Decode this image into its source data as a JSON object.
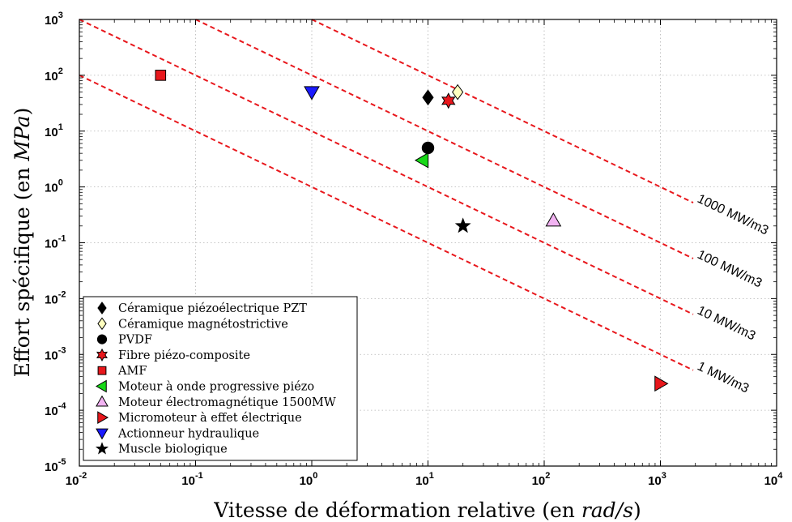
{
  "chart_data": {
    "type": "scatter",
    "xlabel": {
      "prefix": "Vitesse de déformation relative (en ",
      "unit": "rad/s",
      "suffix": ")"
    },
    "ylabel": {
      "prefix": "Effort spécifique (en ",
      "unit": "MPa",
      "suffix": ")"
    },
    "x_scale": "log",
    "y_scale": "log",
    "xlim": [
      0.01,
      10000
    ],
    "ylim": [
      1e-05,
      1000
    ],
    "x_ticks": [
      {
        "base": "10",
        "exp": "-2",
        "value": 0.01
      },
      {
        "base": "10",
        "exp": "-1",
        "value": 0.1
      },
      {
        "base": "10",
        "exp": "0",
        "value": 1
      },
      {
        "base": "10",
        "exp": "1",
        "value": 10
      },
      {
        "base": "10",
        "exp": "2",
        "value": 100
      },
      {
        "base": "10",
        "exp": "3",
        "value": 1000
      },
      {
        "base": "10",
        "exp": "4",
        "value": 10000
      }
    ],
    "y_ticks": [
      {
        "base": "10",
        "exp": "-5",
        "value": 1e-05
      },
      {
        "base": "10",
        "exp": "-4",
        "value": 0.0001
      },
      {
        "base": "10",
        "exp": "-3",
        "value": 0.001
      },
      {
        "base": "10",
        "exp": "-2",
        "value": 0.01
      },
      {
        "base": "10",
        "exp": "-1",
        "value": 0.1
      },
      {
        "base": "10",
        "exp": "0",
        "value": 1
      },
      {
        "base": "10",
        "exp": "1",
        "value": 10
      },
      {
        "base": "10",
        "exp": "2",
        "value": 100
      },
      {
        "base": "10",
        "exp": "3",
        "value": 1000
      }
    ],
    "grid": true,
    "legend_position": "bottom-left",
    "reference_lines": [
      {
        "label": "1000 MW/m3",
        "power": 1000,
        "color": "#e8171c"
      },
      {
        "label": "100 MW/m3",
        "power": 100,
        "color": "#e8171c"
      },
      {
        "label": "10 MW/m3",
        "power": 10,
        "color": "#e8171c"
      },
      {
        "label": "1 MW/m3",
        "power": 1,
        "color": "#e8171c"
      }
    ],
    "series": [
      {
        "name": "Céramique piézoélectrique PZT",
        "marker": "diamond",
        "color": "#000000",
        "x": 10,
        "y": 40
      },
      {
        "name": "Céramique magnétostrictive",
        "marker": "diamond",
        "color": "#ffffbf",
        "x": 18,
        "y": 50
      },
      {
        "name": "PVDF",
        "marker": "circle",
        "color": "#000000",
        "x": 10,
        "y": 5
      },
      {
        "name": "Fibre piézo-composite",
        "marker": "hexagram",
        "color": "#e8171c",
        "x": 15,
        "y": 35
      },
      {
        "name": "AMF",
        "marker": "square",
        "color": "#e8171c",
        "x": 0.05,
        "y": 100
      },
      {
        "name": "Moteur à onde progressive piézo",
        "marker": "triangle-left",
        "color": "#18d918",
        "x": 9,
        "y": 3
      },
      {
        "name": "Moteur électromagnétique 1500MW",
        "marker": "triangle-up",
        "color": "#f2b3f2",
        "x": 120,
        "y": 0.25
      },
      {
        "name": "Micromoteur à effet électrique",
        "marker": "triangle-right",
        "color": "#e8171c",
        "x": 1000,
        "y": 0.0003
      },
      {
        "name": "Actionneur hydraulique",
        "marker": "triangle-down",
        "color": "#1a1aff",
        "x": 1,
        "y": 50
      },
      {
        "name": "Muscle biologique",
        "marker": "pentagram",
        "color": "#000000",
        "x": 20,
        "y": 0.2
      }
    ]
  }
}
